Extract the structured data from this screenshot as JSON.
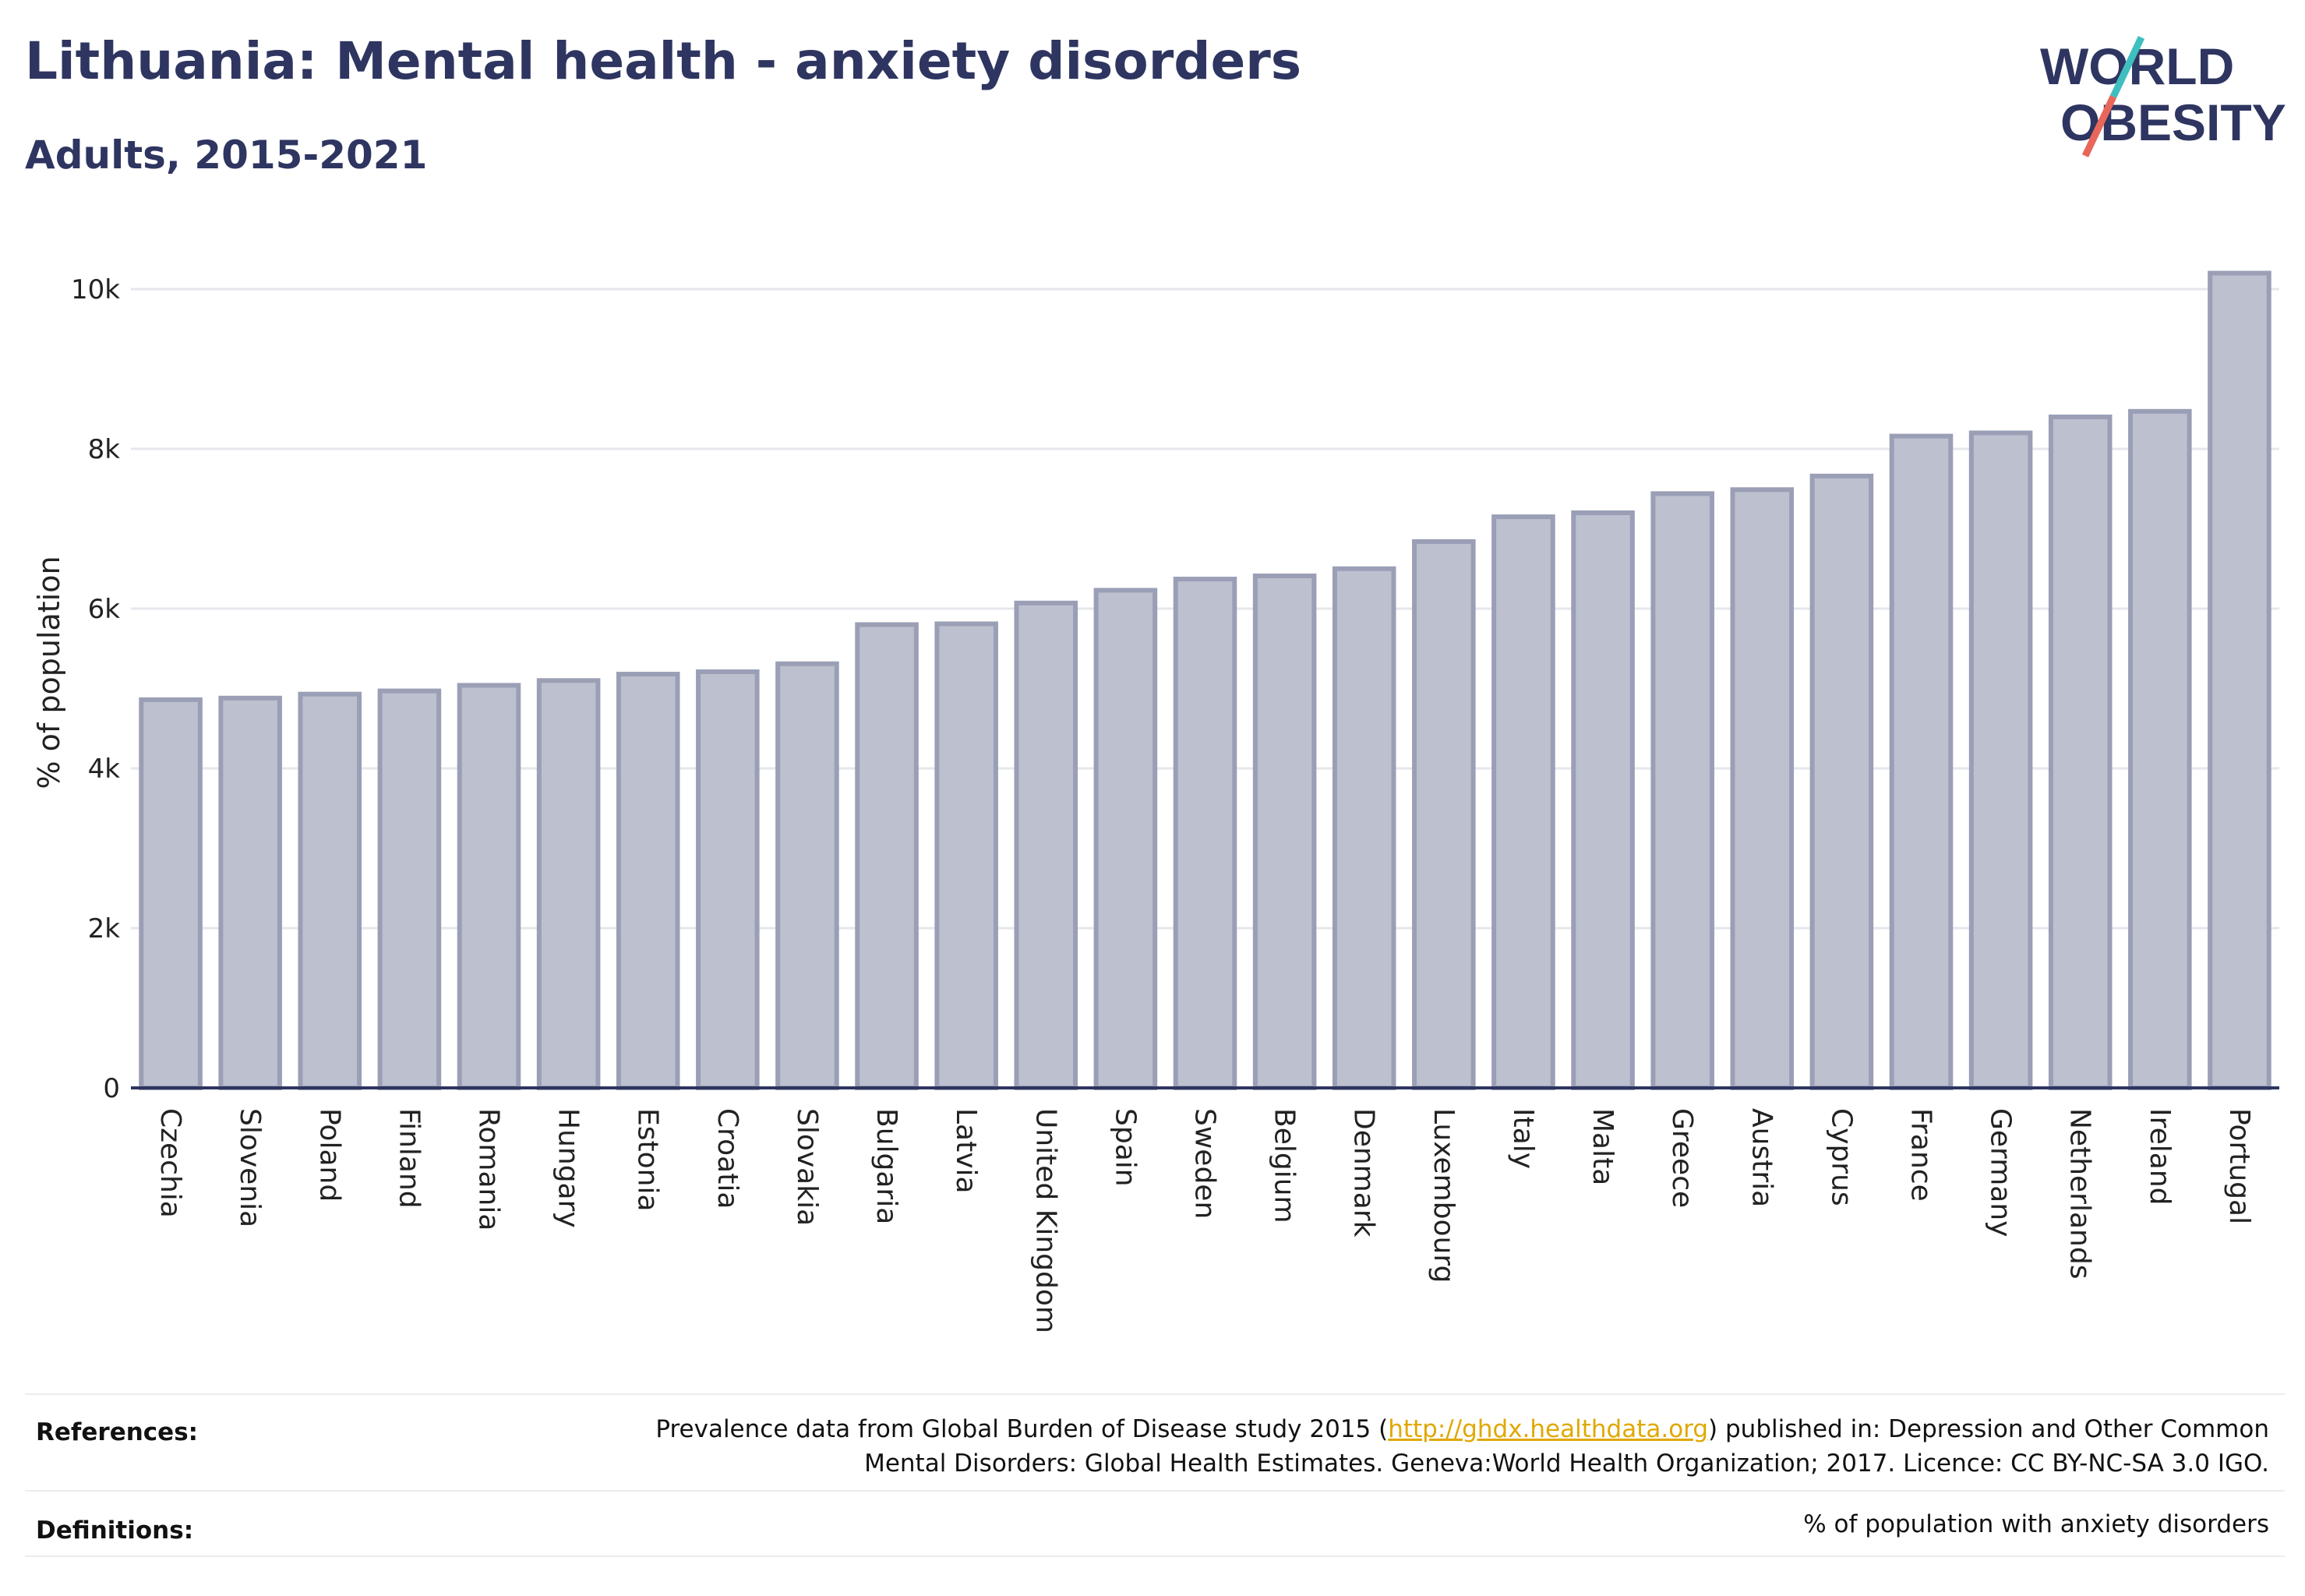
{
  "header": {
    "title": "Lithuania: Mental health - anxiety disorders",
    "subtitle": "Adults, 2015-2021"
  },
  "logo": {
    "line1": "WORLD",
    "line2": "OBESITY",
    "text_color": "#2e3560",
    "slash_colors": [
      "#3fbfbf",
      "#e8675a"
    ]
  },
  "chart_data": {
    "type": "bar",
    "ylabel": "% of population",
    "ylim": [
      0,
      10400
    ],
    "yticks": [
      0,
      2000,
      4000,
      6000,
      8000,
      10000
    ],
    "ytick_labels": [
      "0",
      "2k",
      "4k",
      "6k",
      "8k",
      "10k"
    ],
    "grid": true,
    "bar_fill": "#bcc0cf",
    "bar_stroke": "#9a9fb6",
    "categories": [
      "Czechia",
      "Slovenia",
      "Poland",
      "Finland",
      "Romania",
      "Hungary",
      "Estonia",
      "Croatia",
      "Slovakia",
      "Bulgaria",
      "Latvia",
      "United Kingdom",
      "Spain",
      "Sweden",
      "Belgium",
      "Denmark",
      "Luxembourg",
      "Italy",
      "Malta",
      "Greece",
      "Austria",
      "Cyprus",
      "France",
      "Germany",
      "Netherlands",
      "Ireland",
      "Portugal"
    ],
    "values": [
      4860,
      4880,
      4930,
      4970,
      5040,
      5100,
      5180,
      5210,
      5310,
      5800,
      5810,
      6070,
      6230,
      6370,
      6410,
      6500,
      6840,
      7150,
      7200,
      7440,
      7490,
      7660,
      8160,
      8200,
      8400,
      8470,
      10200
    ]
  },
  "footer": {
    "references_label": "References:",
    "references_pre": "Prevalence data from Global Burden of Disease study 2015 (",
    "references_link": "http://ghdx.healthdata.org",
    "references_post": ") published in: Depression and Other Common",
    "references_line2": "Mental Disorders: Global Health Estimates. Geneva:World Health Organization; 2017. Licence: CC BY-NC-SA 3.0 IGO.",
    "definitions_label": "Definitions:",
    "definitions_text": "% of population with anxiety disorders"
  }
}
